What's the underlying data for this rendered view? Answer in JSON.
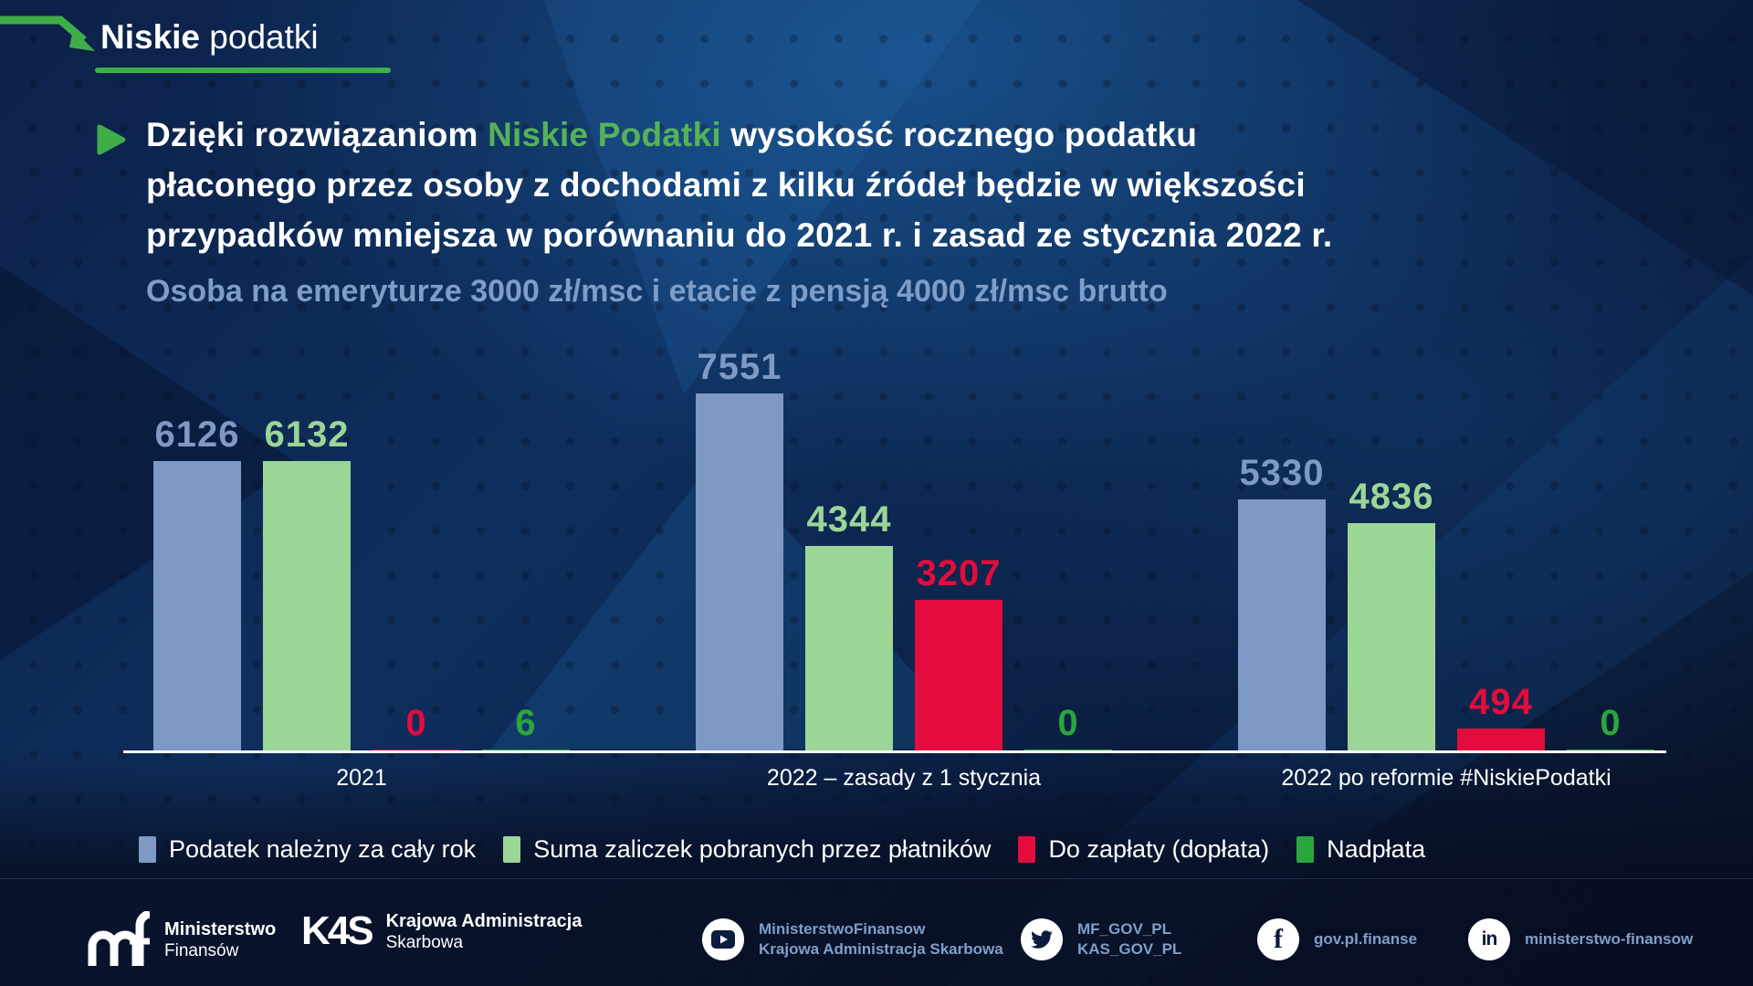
{
  "brand": {
    "bold": "Niskie",
    "regular": "podatki"
  },
  "heading": {
    "lines": [
      [
        {
          "text": "Dzięki rozwiązaniom ",
          "color": "white"
        },
        {
          "text": "Niskie Podatki",
          "color": "green"
        },
        {
          "text": " wysokość rocznego podatku",
          "color": "white"
        }
      ],
      [
        {
          "text": "płaconego przez osoby z dochodami z kilku źródeł będzie w większości",
          "color": "white"
        }
      ],
      [
        {
          "text": "przypadków mniejsza w porównaniu do 2021 r. i zasad ze stycznia 2022 r.",
          "color": "white"
        }
      ]
    ]
  },
  "chart_data": {
    "type": "bar",
    "title": "Osoba na emeryturze 3000 zł/msc i etacie z pensją 4000 zł/msc brutto",
    "categories": [
      "2021",
      "2022 – zasady z 1 stycznia",
      "2022 po reformie #NiskiePodatki"
    ],
    "series": [
      {
        "name": "Podatek należny za cały rok",
        "color": "#7d99c4",
        "values": [
          6126,
          7551,
          5330
        ]
      },
      {
        "name": "Suma zaliczek pobranych przez płatników",
        "color": "#9bd697",
        "values": [
          6132,
          4344,
          4836
        ]
      },
      {
        "name": "Do zapłaty (dopłata)",
        "color": "#e40c3c",
        "values": [
          0,
          3207,
          494
        ]
      },
      {
        "name": "Nadpłata",
        "color": "#2aa63f",
        "values": [
          6,
          0,
          0
        ]
      }
    ],
    "ylim": [
      0,
      7600
    ],
    "grid": false,
    "legend_position": "bottom",
    "value_labels": true
  },
  "footer": {
    "ministry": {
      "line1": "Ministerstwo",
      "line2": "Finansów"
    },
    "kas": {
      "logo_text": "K4S",
      "line1": "Krajowa Administracja",
      "line2": "Skarbowa"
    },
    "social": [
      {
        "icon": "youtube-icon",
        "lines": [
          "MinisterstwoFinansow",
          "Krajowa Administracja Skarbowa"
        ]
      },
      {
        "icon": "twitter-icon",
        "lines": [
          "MF_GOV_PL",
          "KAS_GOV_PL"
        ]
      },
      {
        "icon": "facebook-icon",
        "lines": [
          "gov.pl.finanse"
        ]
      },
      {
        "icon": "linkedin-icon",
        "lines": [
          "ministerstwo-finansow"
        ]
      }
    ]
  },
  "colors": {
    "accent_green": "#3fae49",
    "heading_green": "#55b259",
    "subtitle_blue": "#7e9dc7",
    "axis_white": "#ffffff",
    "social_text_blue": "#7f9fc8"
  }
}
